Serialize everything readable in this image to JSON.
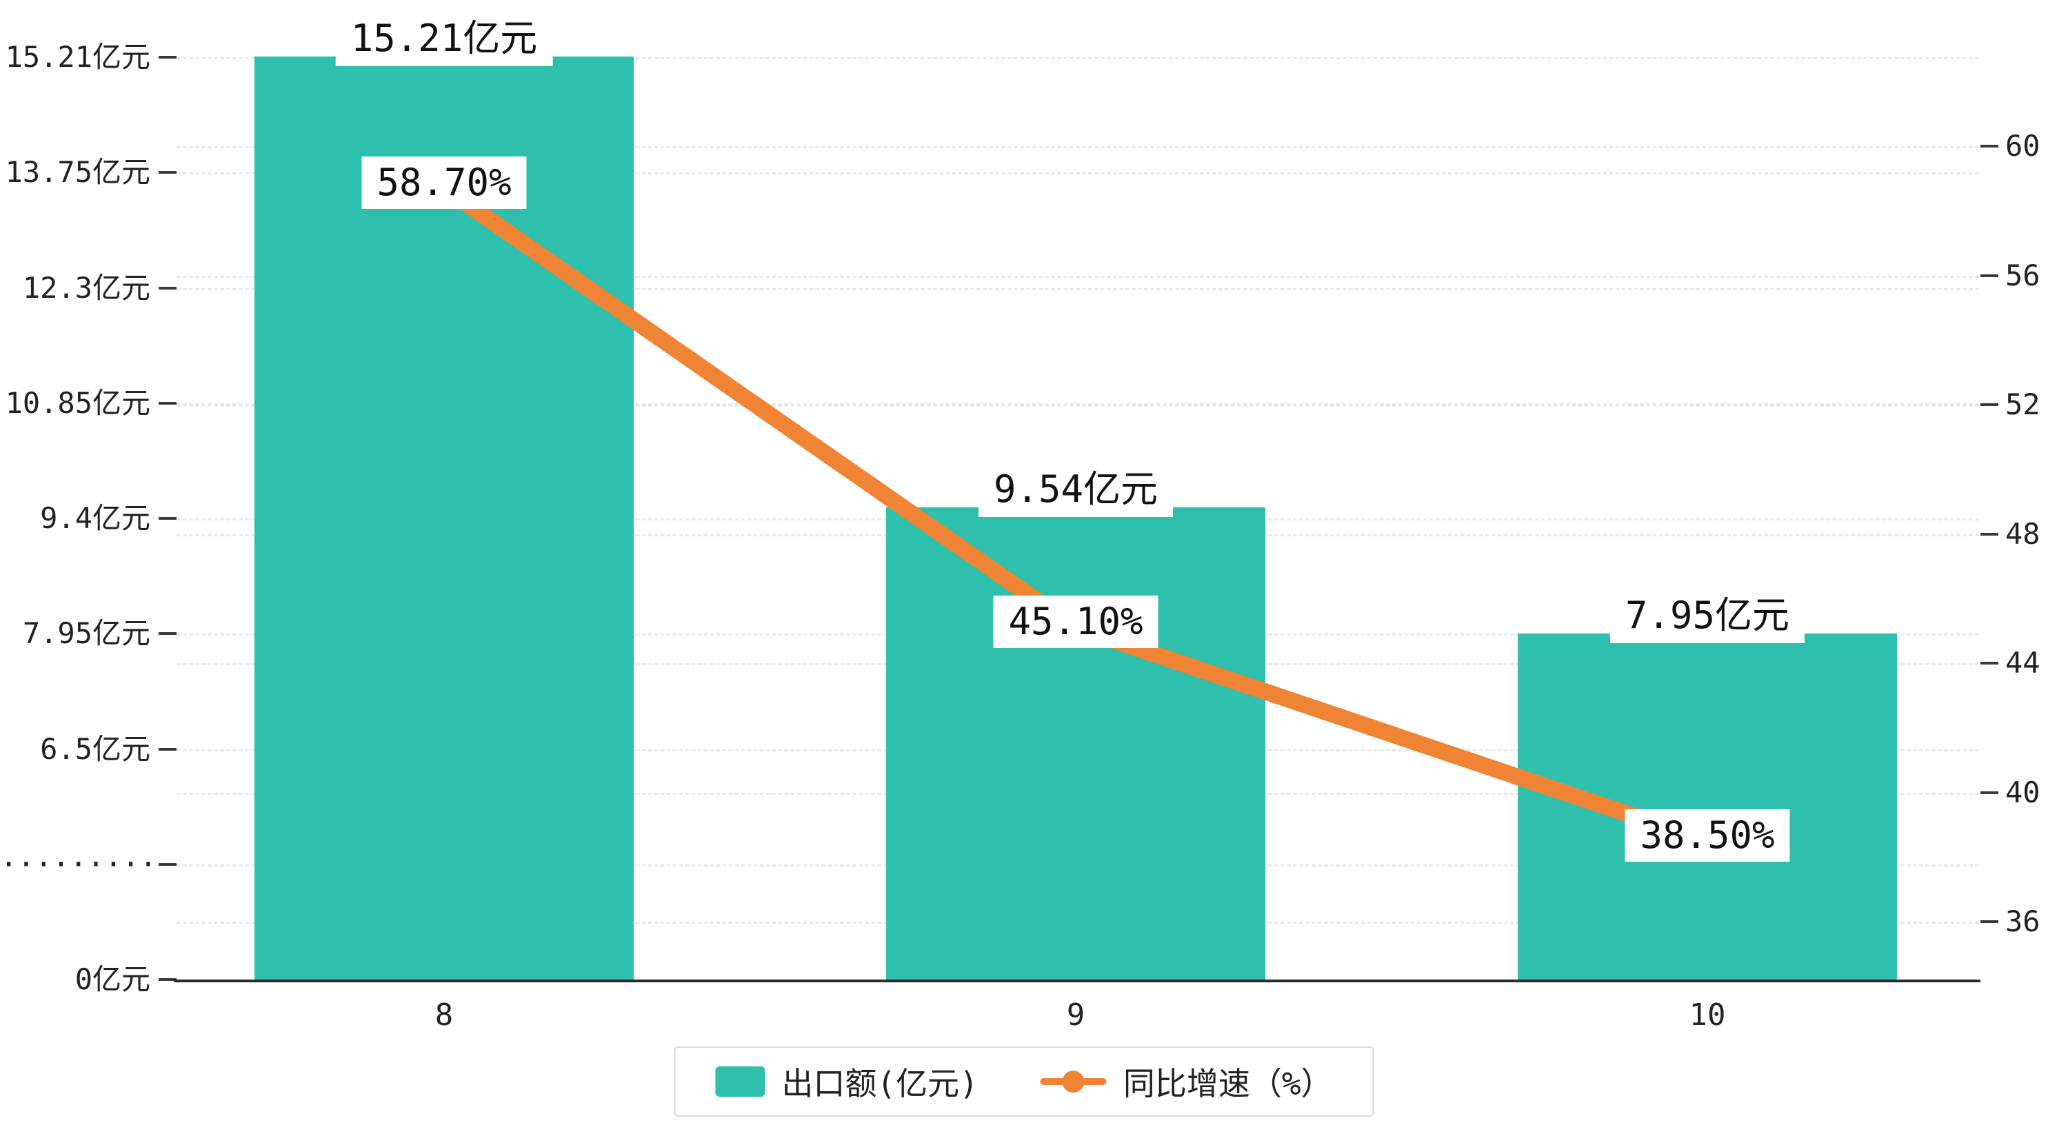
{
  "chart_data": {
    "type": "bar",
    "categories": [
      "8",
      "9",
      "10"
    ],
    "series": [
      {
        "name": "出口额(亿元)",
        "type": "bar",
        "color": "#2EC0AD",
        "values": [
          15.21,
          9.54,
          7.95
        ],
        "labels": [
          "15.21亿元",
          "9.54亿元",
          "7.95亿元"
        ]
      },
      {
        "name": "同比增速（%）",
        "type": "line",
        "color": "#EE8434",
        "values": [
          58.7,
          45.1,
          38.5
        ],
        "labels": [
          "58.70%",
          "45.10%",
          "38.50%"
        ]
      }
    ],
    "left_axis": {
      "ticks": [
        "15.21亿元",
        "13.75亿元",
        "12.3亿元",
        "10.85亿元",
        "9.4亿元",
        "7.95亿元",
        "6.5亿元",
        "·········",
        "0亿元"
      ],
      "break_indicator": "·········",
      "unit": "亿元"
    },
    "right_axis": {
      "ticks": [
        "60",
        "56",
        "52",
        "48",
        "44",
        "40",
        "36"
      ],
      "max": 60,
      "min": 36,
      "step": 4
    },
    "legend": [
      {
        "label": "出口额(亿元)",
        "swatch": "bar",
        "color": "#2EC0AD"
      },
      {
        "label": "同比增速（%）",
        "swatch": "line",
        "color": "#EE8434"
      }
    ],
    "grid": true,
    "legend_position": "bottom-center"
  },
  "colors": {
    "bar": "#2EC0AD",
    "line": "#EE8434",
    "grid": "#e9e9e9",
    "axis": "#2b2b2b",
    "background": "#ffffff"
  }
}
